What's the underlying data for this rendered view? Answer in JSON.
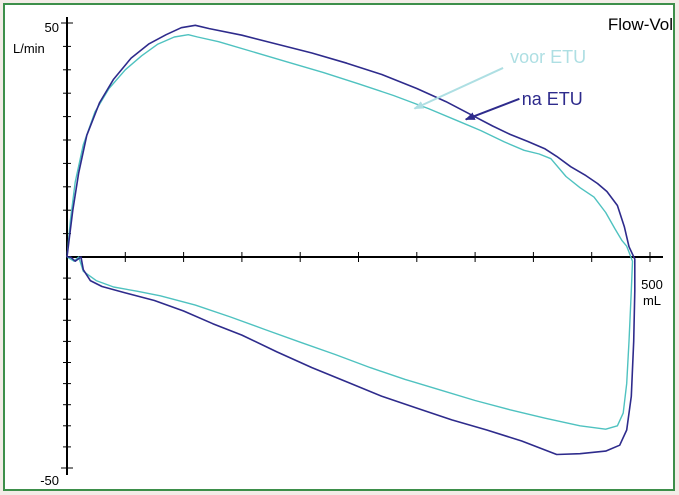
{
  "chart_data": {
    "type": "line",
    "title": "Flow-Vol",
    "xlabel": "mL",
    "ylabel": "L/min",
    "xlim": [
      0,
      500
    ],
    "ylim": [
      -50,
      50
    ],
    "x_tick_labels": [
      {
        "value": 500,
        "label": "500"
      }
    ],
    "y_tick_labels": [
      {
        "value": 50,
        "label": "50"
      },
      {
        "value": -50,
        "label": "-50"
      }
    ],
    "x_minor_step": 50,
    "y_minor_step": 5,
    "grid": false,
    "series": [
      {
        "name": "voor ETU",
        "color": "#4fc2c0",
        "points": [
          [
            0,
            0
          ],
          [
            3,
            8
          ],
          [
            7,
            16
          ],
          [
            14,
            24
          ],
          [
            24,
            31
          ],
          [
            36,
            36
          ],
          [
            50,
            40
          ],
          [
            64,
            43
          ],
          [
            78,
            45.5
          ],
          [
            92,
            47
          ],
          [
            104,
            47.5
          ],
          [
            112,
            47
          ],
          [
            130,
            46
          ],
          [
            160,
            43.8
          ],
          [
            190,
            41.6
          ],
          [
            220,
            39.4
          ],
          [
            250,
            37
          ],
          [
            280,
            34.5
          ],
          [
            310,
            31.7
          ],
          [
            335,
            29.1
          ],
          [
            355,
            27
          ],
          [
            375,
            24.6
          ],
          [
            392,
            22.8
          ],
          [
            405,
            22
          ],
          [
            415,
            21
          ],
          [
            428,
            17.2
          ],
          [
            440,
            14.8
          ],
          [
            452,
            12.8
          ],
          [
            462,
            9.5
          ],
          [
            470,
            6
          ],
          [
            476,
            3.5
          ],
          [
            480,
            2.3
          ],
          [
            485,
            -1
          ],
          [
            484,
            -8
          ],
          [
            482,
            -20
          ],
          [
            480,
            -30
          ],
          [
            477,
            -37
          ],
          [
            472,
            -40
          ],
          [
            462,
            -40.8
          ],
          [
            440,
            -40
          ],
          [
            410,
            -38.2
          ],
          [
            380,
            -36.2
          ],
          [
            350,
            -34
          ],
          [
            320,
            -31.5
          ],
          [
            290,
            -29
          ],
          [
            260,
            -26.2
          ],
          [
            230,
            -23.1
          ],
          [
            200,
            -20.2
          ],
          [
            170,
            -17.2
          ],
          [
            140,
            -14.2
          ],
          [
            110,
            -11.4
          ],
          [
            80,
            -9.2
          ],
          [
            60,
            -8.1
          ],
          [
            40,
            -7.1
          ],
          [
            25,
            -5.6
          ],
          [
            14,
            -3.4
          ],
          [
            10,
            0
          ],
          [
            6,
            -1
          ],
          [
            2,
            -0.3
          ],
          [
            0,
            0
          ]
        ]
      },
      {
        "name": "na ETU",
        "color": "#2e2b8c",
        "points": [
          [
            0,
            0
          ],
          [
            2,
            4
          ],
          [
            5,
            10
          ],
          [
            10,
            18
          ],
          [
            17,
            26
          ],
          [
            28,
            33
          ],
          [
            40,
            38
          ],
          [
            55,
            42.5
          ],
          [
            70,
            45.5
          ],
          [
            85,
            47.5
          ],
          [
            98,
            49
          ],
          [
            110,
            49.5
          ],
          [
            122,
            48.8
          ],
          [
            150,
            47.4
          ],
          [
            180,
            45.5
          ],
          [
            210,
            43.6
          ],
          [
            240,
            41.4
          ],
          [
            270,
            39
          ],
          [
            300,
            36
          ],
          [
            325,
            33.2
          ],
          [
            345,
            30.6
          ],
          [
            365,
            28
          ],
          [
            380,
            26.2
          ],
          [
            395,
            24.7
          ],
          [
            410,
            23.1
          ],
          [
            420,
            21.5
          ],
          [
            432,
            19.3
          ],
          [
            445,
            17.4
          ],
          [
            455,
            15.7
          ],
          [
            463,
            14
          ],
          [
            472,
            11
          ],
          [
            478,
            6.5
          ],
          [
            482,
            2.2
          ],
          [
            487,
            -0.5
          ],
          [
            487,
            -8
          ],
          [
            486,
            -20
          ],
          [
            484,
            -33
          ],
          [
            480,
            -41
          ],
          [
            474,
            -44.6
          ],
          [
            462,
            -46
          ],
          [
            440,
            -46.6
          ],
          [
            420,
            -46.8
          ],
          [
            390,
            -43.6
          ],
          [
            360,
            -41
          ],
          [
            330,
            -38.6
          ],
          [
            300,
            -35.8
          ],
          [
            270,
            -33
          ],
          [
            240,
            -29.6
          ],
          [
            210,
            -26.2
          ],
          [
            180,
            -22.5
          ],
          [
            150,
            -18.5
          ],
          [
            125,
            -15.8
          ],
          [
            100,
            -12.8
          ],
          [
            75,
            -10.3
          ],
          [
            50,
            -8.5
          ],
          [
            30,
            -7
          ],
          [
            20,
            -5.6
          ],
          [
            14,
            -3
          ],
          [
            12,
            0
          ],
          [
            7,
            -1
          ],
          [
            3,
            0
          ],
          [
            0,
            0
          ]
        ]
      }
    ],
    "annotations": [
      {
        "text": "voor ETU",
        "series": 0,
        "color": "#aedfe3",
        "label_at": [
          380,
          41.5
        ],
        "arrow_from": [
          374,
          40.4
        ],
        "arrow_to": [
          298,
          31.7
        ]
      },
      {
        "text": "na ETU",
        "series": 1,
        "color": "#2e2b8c",
        "label_at": [
          390,
          33.8
        ],
        "arrow_from": [
          388,
          33.8
        ],
        "arrow_to": [
          342,
          29.4
        ]
      }
    ]
  }
}
